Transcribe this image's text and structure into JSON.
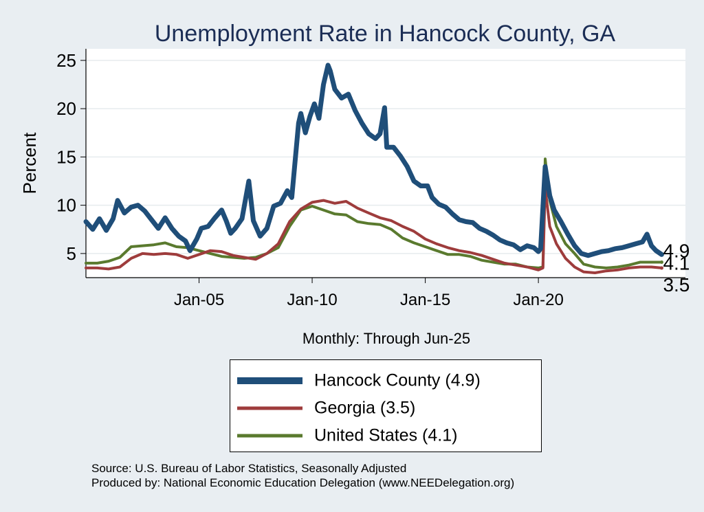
{
  "colors": {
    "hancock": "#1f4e79",
    "georgia": "#9e3c3c",
    "us": "#5a7a2e",
    "title": "#1b2d55"
  },
  "chart_data": {
    "type": "line",
    "title": "Unemployment Rate in Hancock  County, GA",
    "ylabel": "Percent",
    "xlabel": "Monthly: Through Jun-25",
    "xlim": [
      2000.0,
      2026.5
    ],
    "ylim": [
      2.5,
      26.2
    ],
    "yticks": [
      5,
      10,
      15,
      20,
      25
    ],
    "xticks": [
      {
        "value": 2005,
        "label": "Jan-05"
      },
      {
        "value": 2010,
        "label": "Jan-10"
      },
      {
        "value": 2015,
        "label": "Jan-15"
      },
      {
        "value": 2020,
        "label": "Jan-20"
      }
    ],
    "grid": true,
    "end_labels": [
      {
        "series": "hancock",
        "text": "4.9",
        "value": 4.9
      },
      {
        "series": "us",
        "text": "4.1",
        "value": 4.1
      },
      {
        "series": "georgia",
        "text": "3.5",
        "value": 3.5
      }
    ],
    "series": [
      {
        "key": "hancock",
        "values": [
          [
            2000.0,
            8.3
          ],
          [
            2000.3,
            7.5
          ],
          [
            2000.6,
            8.6
          ],
          [
            2000.9,
            7.4
          ],
          [
            2001.2,
            8.6
          ],
          [
            2001.4,
            10.5
          ],
          [
            2001.7,
            9.2
          ],
          [
            2002.0,
            9.8
          ],
          [
            2002.3,
            10.0
          ],
          [
            2002.6,
            9.4
          ],
          [
            2002.9,
            8.5
          ],
          [
            2003.2,
            7.6
          ],
          [
            2003.5,
            8.7
          ],
          [
            2003.8,
            7.6
          ],
          [
            2004.1,
            6.8
          ],
          [
            2004.4,
            6.3
          ],
          [
            2004.6,
            5.3
          ],
          [
            2004.9,
            6.5
          ],
          [
            2005.1,
            7.6
          ],
          [
            2005.4,
            7.8
          ],
          [
            2005.7,
            8.7
          ],
          [
            2006.0,
            9.5
          ],
          [
            2006.2,
            8.4
          ],
          [
            2006.4,
            7.1
          ],
          [
            2006.6,
            7.6
          ],
          [
            2006.9,
            8.6
          ],
          [
            2007.2,
            12.5
          ],
          [
            2007.4,
            8.4
          ],
          [
            2007.7,
            6.8
          ],
          [
            2008.0,
            7.6
          ],
          [
            2008.3,
            9.9
          ],
          [
            2008.6,
            10.2
          ],
          [
            2008.9,
            11.5
          ],
          [
            2009.1,
            10.8
          ],
          [
            2009.4,
            18.5
          ],
          [
            2009.5,
            19.5
          ],
          [
            2009.7,
            17.5
          ],
          [
            2009.9,
            19.2
          ],
          [
            2010.1,
            20.5
          ],
          [
            2010.3,
            19.0
          ],
          [
            2010.5,
            22.5
          ],
          [
            2010.7,
            24.5
          ],
          [
            2010.8,
            23.9
          ],
          [
            2011.0,
            22.0
          ],
          [
            2011.3,
            21.1
          ],
          [
            2011.6,
            21.5
          ],
          [
            2011.9,
            19.8
          ],
          [
            2012.2,
            18.5
          ],
          [
            2012.5,
            17.4
          ],
          [
            2012.8,
            16.9
          ],
          [
            2013.0,
            17.4
          ],
          [
            2013.2,
            20.1
          ],
          [
            2013.3,
            16.0
          ],
          [
            2013.6,
            16.0
          ],
          [
            2013.9,
            15.1
          ],
          [
            2014.2,
            14.0
          ],
          [
            2014.5,
            12.5
          ],
          [
            2014.8,
            12.0
          ],
          [
            2015.1,
            12.0
          ],
          [
            2015.3,
            10.8
          ],
          [
            2015.6,
            10.1
          ],
          [
            2015.9,
            9.8
          ],
          [
            2016.2,
            9.1
          ],
          [
            2016.5,
            8.5
          ],
          [
            2016.8,
            8.3
          ],
          [
            2017.1,
            8.2
          ],
          [
            2017.4,
            7.6
          ],
          [
            2017.7,
            7.3
          ],
          [
            2018.0,
            6.9
          ],
          [
            2018.3,
            6.4
          ],
          [
            2018.6,
            6.1
          ],
          [
            2018.9,
            5.9
          ],
          [
            2019.2,
            5.4
          ],
          [
            2019.5,
            5.8
          ],
          [
            2019.8,
            5.6
          ],
          [
            2020.0,
            5.2
          ],
          [
            2020.1,
            5.5
          ],
          [
            2020.3,
            14.0
          ],
          [
            2020.5,
            11.0
          ],
          [
            2020.7,
            9.5
          ],
          [
            2021.0,
            8.3
          ],
          [
            2021.3,
            7.0
          ],
          [
            2021.6,
            5.8
          ],
          [
            2021.9,
            5.0
          ],
          [
            2022.2,
            4.8
          ],
          [
            2022.5,
            5.0
          ],
          [
            2022.8,
            5.2
          ],
          [
            2023.1,
            5.3
          ],
          [
            2023.4,
            5.5
          ],
          [
            2023.7,
            5.6
          ],
          [
            2024.0,
            5.8
          ],
          [
            2024.3,
            6.0
          ],
          [
            2024.6,
            6.2
          ],
          [
            2024.8,
            7.0
          ],
          [
            2025.0,
            5.8
          ],
          [
            2025.2,
            5.3
          ],
          [
            2025.45,
            4.9
          ]
        ]
      },
      {
        "key": "georgia",
        "values": [
          [
            2000.0,
            3.5
          ],
          [
            2000.5,
            3.5
          ],
          [
            2001.0,
            3.4
          ],
          [
            2001.5,
            3.6
          ],
          [
            2002.0,
            4.5
          ],
          [
            2002.5,
            5.0
          ],
          [
            2003.0,
            4.9
          ],
          [
            2003.5,
            5.0
          ],
          [
            2004.0,
            4.9
          ],
          [
            2004.5,
            4.5
          ],
          [
            2005.0,
            4.9
          ],
          [
            2005.5,
            5.3
          ],
          [
            2006.0,
            5.2
          ],
          [
            2006.5,
            4.8
          ],
          [
            2007.0,
            4.6
          ],
          [
            2007.5,
            4.4
          ],
          [
            2008.0,
            5.0
          ],
          [
            2008.5,
            6.0
          ],
          [
            2009.0,
            8.3
          ],
          [
            2009.5,
            9.6
          ],
          [
            2010.0,
            10.3
          ],
          [
            2010.5,
            10.5
          ],
          [
            2011.0,
            10.2
          ],
          [
            2011.5,
            10.4
          ],
          [
            2012.0,
            9.7
          ],
          [
            2012.5,
            9.2
          ],
          [
            2013.0,
            8.7
          ],
          [
            2013.5,
            8.4
          ],
          [
            2014.0,
            7.8
          ],
          [
            2014.5,
            7.3
          ],
          [
            2015.0,
            6.5
          ],
          [
            2015.5,
            6.0
          ],
          [
            2016.0,
            5.6
          ],
          [
            2016.5,
            5.3
          ],
          [
            2017.0,
            5.1
          ],
          [
            2017.5,
            4.8
          ],
          [
            2018.0,
            4.4
          ],
          [
            2018.5,
            4.0
          ],
          [
            2019.0,
            3.8
          ],
          [
            2019.5,
            3.6
          ],
          [
            2020.0,
            3.3
          ],
          [
            2020.2,
            3.5
          ],
          [
            2020.3,
            11.8
          ],
          [
            2020.5,
            7.8
          ],
          [
            2020.8,
            6.0
          ],
          [
            2021.2,
            4.5
          ],
          [
            2021.6,
            3.6
          ],
          [
            2022.0,
            3.1
          ],
          [
            2022.5,
            3.0
          ],
          [
            2023.0,
            3.2
          ],
          [
            2023.5,
            3.3
          ],
          [
            2024.0,
            3.5
          ],
          [
            2024.5,
            3.6
          ],
          [
            2025.0,
            3.6
          ],
          [
            2025.45,
            3.5
          ]
        ]
      },
      {
        "key": "us",
        "values": [
          [
            2000.0,
            4.0
          ],
          [
            2000.5,
            4.0
          ],
          [
            2001.0,
            4.2
          ],
          [
            2001.5,
            4.6
          ],
          [
            2002.0,
            5.7
          ],
          [
            2002.5,
            5.8
          ],
          [
            2003.0,
            5.9
          ],
          [
            2003.5,
            6.1
          ],
          [
            2004.0,
            5.7
          ],
          [
            2004.5,
            5.6
          ],
          [
            2005.0,
            5.3
          ],
          [
            2005.5,
            5.0
          ],
          [
            2006.0,
            4.7
          ],
          [
            2006.5,
            4.6
          ],
          [
            2007.0,
            4.5
          ],
          [
            2007.5,
            4.6
          ],
          [
            2008.0,
            5.0
          ],
          [
            2008.5,
            5.6
          ],
          [
            2009.0,
            7.8
          ],
          [
            2009.5,
            9.5
          ],
          [
            2010.0,
            9.9
          ],
          [
            2010.5,
            9.5
          ],
          [
            2011.0,
            9.1
          ],
          [
            2011.5,
            9.0
          ],
          [
            2012.0,
            8.3
          ],
          [
            2012.5,
            8.1
          ],
          [
            2013.0,
            8.0
          ],
          [
            2013.5,
            7.5
          ],
          [
            2014.0,
            6.6
          ],
          [
            2014.5,
            6.1
          ],
          [
            2015.0,
            5.7
          ],
          [
            2015.5,
            5.3
          ],
          [
            2016.0,
            4.9
          ],
          [
            2016.5,
            4.9
          ],
          [
            2017.0,
            4.7
          ],
          [
            2017.5,
            4.3
          ],
          [
            2018.0,
            4.1
          ],
          [
            2018.5,
            3.9
          ],
          [
            2019.0,
            3.9
          ],
          [
            2019.5,
            3.6
          ],
          [
            2020.0,
            3.5
          ],
          [
            2020.2,
            3.6
          ],
          [
            2020.3,
            14.8
          ],
          [
            2020.5,
            10.5
          ],
          [
            2020.8,
            7.8
          ],
          [
            2021.2,
            6.0
          ],
          [
            2021.6,
            5.0
          ],
          [
            2022.0,
            3.9
          ],
          [
            2022.5,
            3.6
          ],
          [
            2023.0,
            3.5
          ],
          [
            2023.5,
            3.6
          ],
          [
            2024.0,
            3.8
          ],
          [
            2024.5,
            4.1
          ],
          [
            2025.0,
            4.1
          ],
          [
            2025.45,
            4.1
          ]
        ]
      }
    ]
  },
  "legend": {
    "items": [
      {
        "key": "hancock",
        "label": "Hancock  County (4.9)"
      },
      {
        "key": "georgia",
        "label": "Georgia (3.5)"
      },
      {
        "key": "us",
        "label": "United States (4.1)"
      }
    ]
  },
  "footer": {
    "source": "Source: U.S. Bureau of Labor Statistics, Seasonally Adjusted",
    "produced": "Produced by: National Economic Education Delegation (www.NEEDelegation.org)"
  }
}
